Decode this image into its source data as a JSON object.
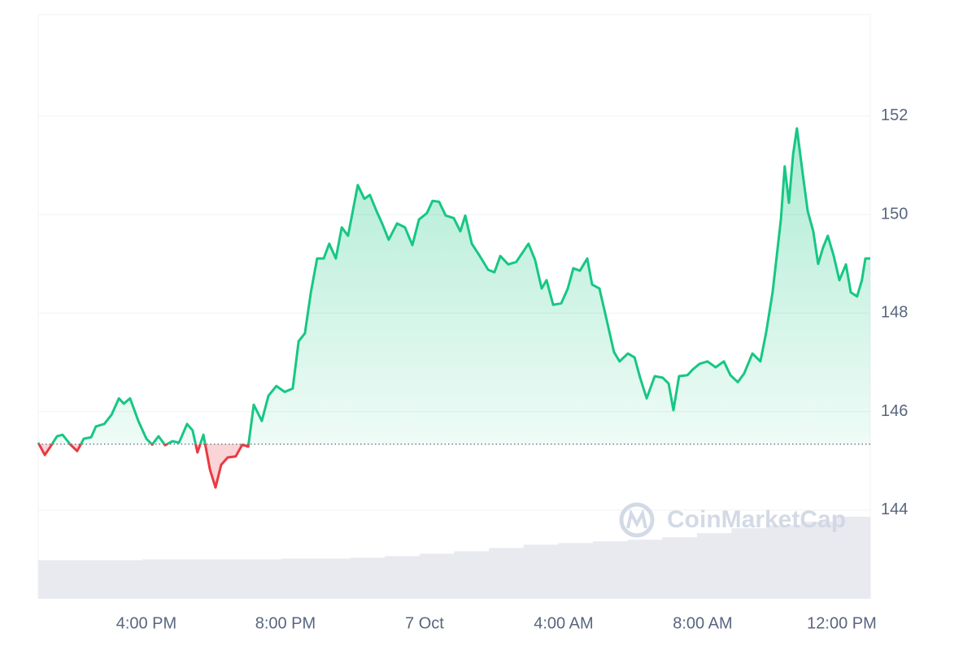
{
  "chart_data": {
    "type": "line",
    "watermark": "CoinMarketCap",
    "baseline": 145.34,
    "xlim": [
      12.89,
      36.82
    ],
    "xticks": [
      {
        "value": 16,
        "label": "4:00 PM"
      },
      {
        "value": 20,
        "label": "8:00 PM"
      },
      {
        "value": 24,
        "label": "7 Oct"
      },
      {
        "value": 28,
        "label": "4:00 AM"
      },
      {
        "value": 32,
        "label": "8:00 AM"
      },
      {
        "value": 36,
        "label": "12:00 PM"
      }
    ],
    "ylim": [
      142.2,
      154.06
    ],
    "yticks": [
      144,
      146,
      148,
      150,
      152
    ],
    "grid": true,
    "up_color": "#16c784",
    "down_color": "#ea3943",
    "x": [
      12.89,
      13.08,
      13.24,
      13.43,
      13.59,
      13.83,
      14.01,
      14.2,
      14.41,
      14.55,
      14.79,
      15,
      15.21,
      15.35,
      15.53,
      15.77,
      16,
      16.17,
      16.35,
      16.54,
      16.75,
      16.94,
      17.17,
      17.33,
      17.47,
      17.64,
      17.83,
      17.99,
      18.15,
      18.34,
      18.57,
      18.76,
      18.93,
      19.09,
      19.32,
      19.51,
      19.74,
      19.98,
      20.21,
      20.38,
      20.56,
      20.73,
      20.91,
      21.1,
      21.26,
      21.45,
      21.62,
      21.8,
      22.08,
      22.27,
      22.43,
      22.62,
      22.78,
      22.97,
      23.21,
      23.44,
      23.65,
      23.84,
      24.07,
      24.23,
      24.42,
      24.61,
      24.84,
      25.03,
      25.17,
      25.36,
      25.59,
      25.83,
      26.01,
      26.18,
      26.41,
      26.64,
      26.83,
      26.99,
      27.18,
      27.37,
      27.51,
      27.7,
      27.93,
      28.12,
      28.28,
      28.47,
      28.68,
      28.82,
      29.03,
      29.22,
      29.45,
      29.61,
      29.85,
      30.04,
      30.2,
      30.39,
      30.62,
      30.85,
      31.02,
      31.16,
      31.32,
      31.56,
      31.72,
      31.91,
      32.14,
      32.37,
      32.61,
      32.8,
      33.01,
      33.19,
      33.43,
      33.66,
      33.82,
      34.01,
      34.25,
      34.36,
      34.48,
      34.6,
      34.71,
      34.88,
      35.02,
      35.18,
      35.32,
      35.46,
      35.6,
      35.77,
      35.93,
      36.12,
      36.26,
      36.44,
      36.58,
      36.68,
      36.82
    ],
    "values": [
      145.37,
      145.12,
      145.29,
      145.5,
      145.53,
      145.32,
      145.2,
      145.45,
      145.48,
      145.7,
      145.75,
      145.94,
      146.27,
      146.16,
      146.27,
      145.81,
      145.45,
      145.33,
      145.5,
      145.32,
      145.4,
      145.37,
      145.75,
      145.62,
      145.17,
      145.53,
      144.82,
      144.46,
      144.92,
      145.07,
      145.09,
      145.33,
      145.29,
      146.14,
      145.81,
      146.32,
      146.52,
      146.4,
      146.47,
      147.43,
      147.59,
      148.42,
      149.11,
      149.11,
      149.41,
      149.11,
      149.74,
      149.57,
      150.6,
      150.32,
      150.4,
      150.07,
      149.82,
      149.49,
      149.82,
      149.74,
      149.38,
      149.9,
      150.03,
      150.28,
      150.26,
      149.98,
      149.93,
      149.66,
      149.98,
      149.41,
      149.16,
      148.88,
      148.83,
      149.16,
      148.99,
      149.04,
      149.24,
      149.41,
      149.08,
      148.5,
      148.67,
      148.17,
      148.2,
      148.5,
      148.91,
      148.86,
      149.11,
      148.58,
      148.5,
      147.92,
      147.21,
      147.02,
      147.18,
      147.1,
      146.69,
      146.27,
      146.72,
      146.69,
      146.57,
      146.03,
      146.72,
      146.74,
      146.86,
      146.97,
      147.02,
      146.9,
      147.02,
      146.74,
      146.6,
      146.77,
      147.18,
      147.02,
      147.59,
      148.42,
      149.9,
      150.98,
      150.24,
      151.22,
      151.75,
      150.81,
      150.07,
      149.66,
      149,
      149.33,
      149.57,
      149.16,
      148.67,
      148.99,
      148.42,
      148.34,
      148.67,
      149.11,
      149.11
    ],
    "volume": {
      "ylim": [
        0,
        100
      ],
      "color": "#e8eaef",
      "values": [
        47,
        47,
        47,
        48,
        48,
        48,
        48,
        49,
        49,
        50,
        52,
        55,
        58,
        62,
        66,
        68,
        70,
        72,
        75,
        80,
        86,
        90,
        94,
        100
      ]
    }
  }
}
